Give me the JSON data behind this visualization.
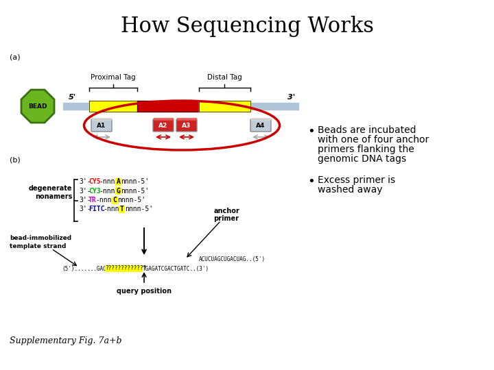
{
  "title": "How Sequencing Works",
  "title_fontsize": 22,
  "background_color": "#ffffff",
  "bullet1_line1": "Beads are incubated",
  "bullet1_line2": "with one of four anchor",
  "bullet1_line3": "primers flanking the",
  "bullet1_line4": "genomic DNA tags",
  "bullet2_line1": "Excess primer is",
  "bullet2_line2": "washed away",
  "supp_label": "Supplementary Fig. 7a+b",
  "label_a": "(a)",
  "label_b": "(b)",
  "proximal_tag": "Proximal Tag",
  "distal_tag": "Distal Tag",
  "bead_color": "#6ab520",
  "bead_text_color": "#000000",
  "yellow_color": "#ffff00",
  "red_color": "#cc0000",
  "gray_color": "#b0c4d8",
  "ellipse_color": "#cc0000",
  "cy5_color": "#ff0000",
  "cy3_color": "#00aa00",
  "tr_color": "#cc00cc",
  "fitc_color": "#0000cc",
  "highlight_color": "#ffff00"
}
